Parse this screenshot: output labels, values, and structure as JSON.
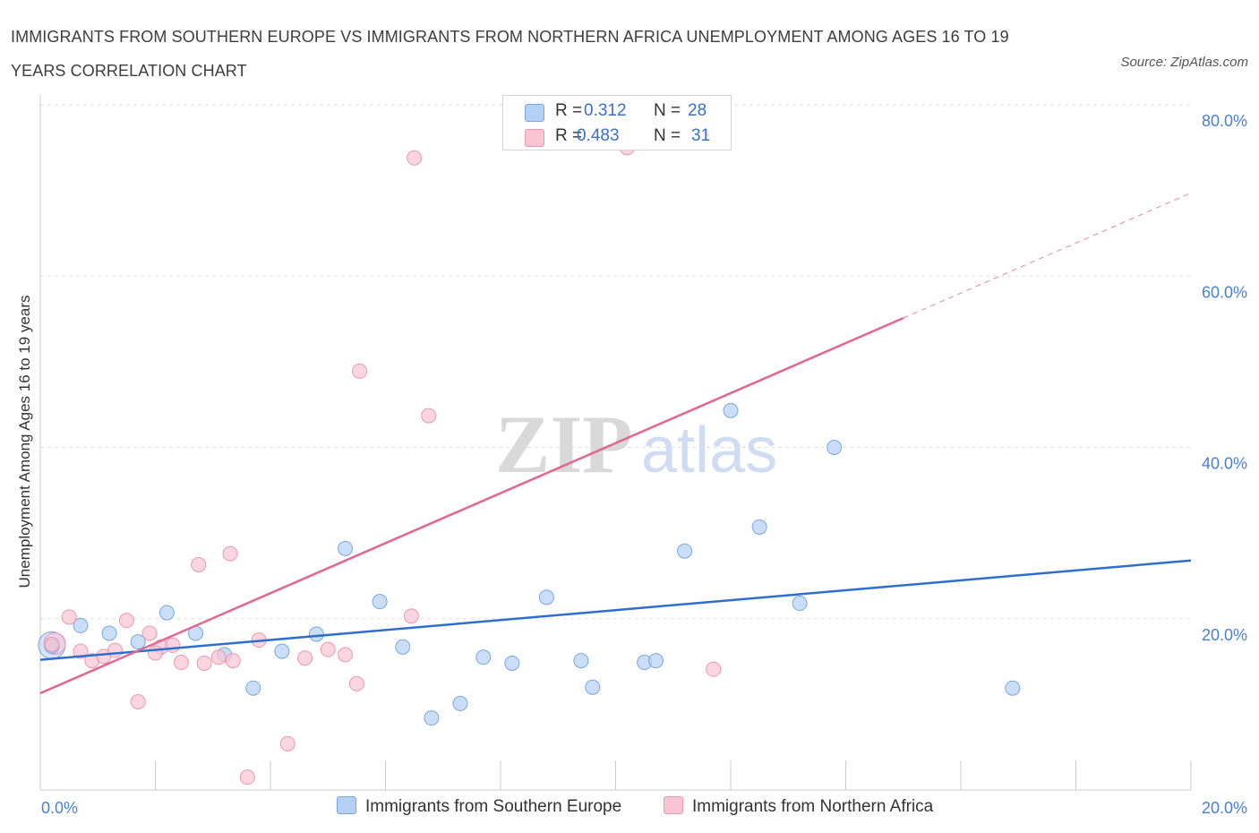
{
  "header": {
    "title": "IMMIGRANTS FROM SOUTHERN EUROPE VS IMMIGRANTS FROM NORTHERN AFRICA UNEMPLOYMENT AMONG AGES 16 TO 19 YEARS CORRELATION CHART",
    "source": "Source: ZipAtlas.com"
  },
  "watermark": {
    "zip": "ZIP",
    "atlas": "atlas"
  },
  "legend": {
    "series1": {
      "r_label": "R =",
      "r_value": "0.312",
      "n_label": "N =",
      "n_value": "28"
    },
    "series2": {
      "r_label": "R =",
      "r_value": "0.483",
      "n_label": "N =",
      "n_value": "31"
    }
  },
  "colors": {
    "blue_fill": "#b5d0f5",
    "blue_stroke": "#7aa6e0",
    "blue_line": "#2f6fcc",
    "pink_fill": "#f9c4d3",
    "pink_stroke": "#ec97b0",
    "pink_line": "#e2668f",
    "grid": "#dddddd",
    "axis": "#cccccc",
    "tick_text": "#4a7fd4"
  },
  "chart_data": {
    "type": "scatter",
    "title": "IMMIGRANTS FROM SOUTHERN EUROPE VS IMMIGRANTS FROM NORTHERN AFRICA UNEMPLOYMENT AMONG AGES 16 TO 19 YEARS CORRELATION CHART",
    "xlabel": "",
    "ylabel": "Unemployment Among Ages 16 to 19 years",
    "xlim": [
      0,
      20
    ],
    "ylim": [
      0,
      80
    ],
    "x_tick_labels": [
      "0.0%",
      "20.0%"
    ],
    "y_tick_values": [
      20,
      40,
      60,
      80
    ],
    "y_tick_labels": [
      "20.0%",
      "40.0%",
      "60.0%",
      "80.0%"
    ],
    "grid": true,
    "legend_position": "top-center",
    "series": [
      {
        "name": "Immigrants from Southern Europe",
        "color": "blue",
        "points": [
          [
            0.2,
            16.8
          ],
          [
            0.7,
            19.2
          ],
          [
            1.2,
            18.3
          ],
          [
            1.7,
            17.3
          ],
          [
            2.2,
            20.7
          ],
          [
            2.7,
            18.3
          ],
          [
            3.2,
            15.8
          ],
          [
            3.7,
            11.9
          ],
          [
            4.2,
            16.2
          ],
          [
            4.8,
            18.2
          ],
          [
            5.3,
            28.2
          ],
          [
            5.9,
            22.0
          ],
          [
            6.3,
            16.7
          ],
          [
            6.8,
            8.4
          ],
          [
            7.3,
            10.1
          ],
          [
            7.7,
            15.5
          ],
          [
            8.2,
            14.8
          ],
          [
            8.8,
            22.5
          ],
          [
            9.4,
            15.1
          ],
          [
            9.6,
            12.0
          ],
          [
            10.5,
            14.9
          ],
          [
            10.7,
            15.1
          ],
          [
            11.2,
            27.9
          ],
          [
            12.0,
            44.3
          ],
          [
            12.5,
            30.7
          ],
          [
            13.2,
            21.8
          ],
          [
            13.8,
            40.0
          ],
          [
            16.9,
            11.9
          ]
        ],
        "trend": {
          "x": [
            0,
            20
          ],
          "y": [
            15.2,
            26.8
          ]
        }
      },
      {
        "name": "Immigrants from Northern Africa",
        "color": "pink",
        "points": [
          [
            0.2,
            17.0
          ],
          [
            0.5,
            20.2
          ],
          [
            0.7,
            16.2
          ],
          [
            0.9,
            15.1
          ],
          [
            1.1,
            15.6
          ],
          [
            1.3,
            16.3
          ],
          [
            1.5,
            19.8
          ],
          [
            1.7,
            10.3
          ],
          [
            1.9,
            18.3
          ],
          [
            2.1,
            16.7
          ],
          [
            2.3,
            16.9
          ],
          [
            2.45,
            14.9
          ],
          [
            2.75,
            26.3
          ],
          [
            2.85,
            14.8
          ],
          [
            3.1,
            15.5
          ],
          [
            3.3,
            27.6
          ],
          [
            3.35,
            15.1
          ],
          [
            3.6,
            1.5
          ],
          [
            3.8,
            17.5
          ],
          [
            4.3,
            5.4
          ],
          [
            4.6,
            15.4
          ],
          [
            5.0,
            16.4
          ],
          [
            5.3,
            15.8
          ],
          [
            5.5,
            12.4
          ],
          [
            5.55,
            48.9
          ],
          [
            6.45,
            20.3
          ],
          [
            6.5,
            73.8
          ],
          [
            6.75,
            43.7
          ],
          [
            10.2,
            75.0
          ],
          [
            11.7,
            14.1
          ],
          [
            2.0,
            16.0
          ]
        ],
        "trend": {
          "x": [
            0,
            15.0
          ],
          "y": [
            11.3,
            55.1
          ],
          "dashed_extension": {
            "x": [
              15.0,
              20.0
            ],
            "y": [
              55.1,
              69.7
            ]
          }
        }
      }
    ]
  }
}
